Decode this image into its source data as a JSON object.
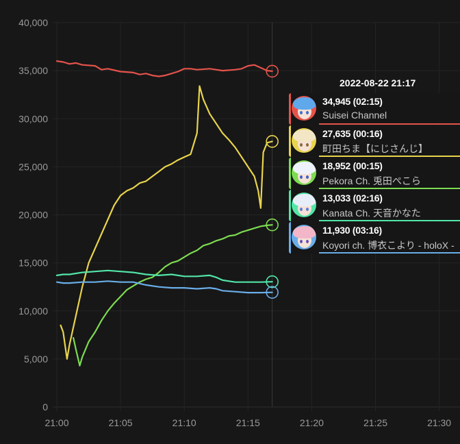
{
  "chart_data": {
    "type": "line",
    "x_unit": "minutes since 21:00",
    "xlim": [
      0,
      30
    ],
    "ylim": [
      0,
      40000
    ],
    "x_ticks": [
      "21:00",
      "21:05",
      "21:10",
      "21:15",
      "21:20",
      "21:25",
      "21:30"
    ],
    "y_ticks": [
      "0",
      "5,000",
      "10,000",
      "15,000",
      "20,000",
      "25,000",
      "30,000",
      "35,000",
      "40,000"
    ],
    "hover_x": 16.9,
    "series": [
      {
        "name": "Suisei Channel",
        "color": "#e5534b",
        "points": [
          [
            0,
            36000
          ],
          [
            0.5,
            35900
          ],
          [
            1,
            35700
          ],
          [
            1.5,
            35800
          ],
          [
            2,
            35600
          ],
          [
            3,
            35500
          ],
          [
            3.5,
            35100
          ],
          [
            4,
            35200
          ],
          [
            5,
            34900
          ],
          [
            6,
            34800
          ],
          [
            6.5,
            34600
          ],
          [
            7,
            34700
          ],
          [
            7.5,
            34500
          ],
          [
            8,
            34400
          ],
          [
            8.5,
            34500
          ],
          [
            9,
            34700
          ],
          [
            9.5,
            34900
          ],
          [
            10,
            35200
          ],
          [
            10.5,
            35200
          ],
          [
            11,
            35100
          ],
          [
            12,
            35200
          ],
          [
            12.5,
            35100
          ],
          [
            13,
            35000
          ],
          [
            14,
            35100
          ],
          [
            14.5,
            35200
          ],
          [
            15,
            35500
          ],
          [
            15.5,
            35600
          ],
          [
            16,
            35300
          ],
          [
            16.5,
            35000
          ],
          [
            16.9,
            34945
          ]
        ]
      },
      {
        "name": "町田ちま【にじさんじ】",
        "color": "#e8d44d",
        "points": [
          [
            0.3,
            8500
          ],
          [
            0.5,
            7800
          ],
          [
            0.8,
            5000
          ],
          [
            1,
            6500
          ],
          [
            1.5,
            9500
          ],
          [
            2,
            12500
          ],
          [
            2.5,
            15000
          ],
          [
            3,
            16500
          ],
          [
            3.5,
            18000
          ],
          [
            4,
            19500
          ],
          [
            4.5,
            21000
          ],
          [
            5,
            22000
          ],
          [
            5.5,
            22500
          ],
          [
            6,
            22800
          ],
          [
            6.5,
            23300
          ],
          [
            7,
            23500
          ],
          [
            7.5,
            24000
          ],
          [
            8,
            24500
          ],
          [
            8.5,
            25000
          ],
          [
            9,
            25300
          ],
          [
            9.5,
            25700
          ],
          [
            10,
            26000
          ],
          [
            10.5,
            26300
          ],
          [
            11,
            28500
          ],
          [
            11.2,
            33400
          ],
          [
            11.5,
            32000
          ],
          [
            12,
            30500
          ],
          [
            12.5,
            29500
          ],
          [
            13,
            28500
          ],
          [
            13.5,
            27800
          ],
          [
            14,
            27000
          ],
          [
            14.5,
            26000
          ],
          [
            15,
            25000
          ],
          [
            15.5,
            24000
          ],
          [
            15.8,
            22500
          ],
          [
            16,
            20700
          ],
          [
            16.2,
            26500
          ],
          [
            16.5,
            27500
          ],
          [
            16.9,
            27635
          ]
        ]
      },
      {
        "name": "Pekora Ch. 兎田ぺこら",
        "color": "#7ddc52",
        "points": [
          [
            1.3,
            7200
          ],
          [
            1.5,
            6000
          ],
          [
            1.8,
            4300
          ],
          [
            2,
            5200
          ],
          [
            2.5,
            6800
          ],
          [
            3,
            7800
          ],
          [
            3.5,
            9000
          ],
          [
            4,
            10000
          ],
          [
            4.5,
            10800
          ],
          [
            5,
            11500
          ],
          [
            5.5,
            12200
          ],
          [
            6,
            12600
          ],
          [
            6.5,
            13000
          ],
          [
            7,
            13300
          ],
          [
            7.5,
            13500
          ],
          [
            8,
            14000
          ],
          [
            8.5,
            14600
          ],
          [
            9,
            15000
          ],
          [
            9.5,
            15200
          ],
          [
            10,
            15600
          ],
          [
            10.5,
            16000
          ],
          [
            11,
            16300
          ],
          [
            11.5,
            16800
          ],
          [
            12,
            17000
          ],
          [
            12.5,
            17300
          ],
          [
            13,
            17500
          ],
          [
            13.5,
            17800
          ],
          [
            14,
            17900
          ],
          [
            14.5,
            18200
          ],
          [
            15,
            18400
          ],
          [
            15.5,
            18600
          ],
          [
            16,
            18800
          ],
          [
            16.5,
            18900
          ],
          [
            16.9,
            18952
          ]
        ]
      },
      {
        "name": "Kanata Ch. 天音かなた",
        "color": "#52e6a8",
        "points": [
          [
            0,
            13700
          ],
          [
            0.5,
            13800
          ],
          [
            1,
            13800
          ],
          [
            2,
            14000
          ],
          [
            3,
            14100
          ],
          [
            4,
            14200
          ],
          [
            5,
            14100
          ],
          [
            6,
            14000
          ],
          [
            7,
            13800
          ],
          [
            8,
            13700
          ],
          [
            9,
            13800
          ],
          [
            10,
            13600
          ],
          [
            11,
            13600
          ],
          [
            12,
            13700
          ],
          [
            12.5,
            13500
          ],
          [
            13,
            13200
          ],
          [
            13.5,
            13100
          ],
          [
            14,
            13000
          ],
          [
            15,
            13000
          ],
          [
            16,
            13000
          ],
          [
            16.9,
            13033
          ]
        ]
      },
      {
        "name": "Koyori ch. 博衣こより - holoX -",
        "color": "#6aaee8",
        "points": [
          [
            0,
            13000
          ],
          [
            0.5,
            12900
          ],
          [
            1,
            12900
          ],
          [
            2,
            13000
          ],
          [
            3,
            13000
          ],
          [
            4,
            13100
          ],
          [
            5,
            13000
          ],
          [
            6,
            13000
          ],
          [
            7,
            12700
          ],
          [
            8,
            12500
          ],
          [
            9,
            12400
          ],
          [
            10,
            12400
          ],
          [
            11,
            12300
          ],
          [
            12,
            12400
          ],
          [
            12.5,
            12300
          ],
          [
            13,
            12100
          ],
          [
            14,
            12000
          ],
          [
            15,
            11900
          ],
          [
            16,
            11900
          ],
          [
            16.9,
            11930
          ]
        ]
      }
    ]
  },
  "tooltip": {
    "title": "2022-08-22 21:17",
    "rows": [
      {
        "value": "34,945",
        "time": "(02:15)",
        "name": "Suisei Channel",
        "color": "#e5534b",
        "hair": "#5fa8ec",
        "eye": "#3f6fd1"
      },
      {
        "value": "27,635",
        "time": "(00:16)",
        "name": "町田ちま【にじさんじ】",
        "color": "#e8d44d",
        "hair": "#f2e6c4",
        "eye": "#8a6a3a"
      },
      {
        "value": "18,952",
        "time": "(00:15)",
        "name": "Pekora Ch. 兎田ぺこら",
        "color": "#7ddc52",
        "hair": "#eef2fb",
        "eye": "#3f5fc7"
      },
      {
        "value": "13,033",
        "time": "(02:16)",
        "name": "Kanata Ch. 天音かなた",
        "color": "#52e6a8",
        "hair": "#e8eef8",
        "eye": "#5b7fd6"
      },
      {
        "value": "11,930",
        "time": "(03:16)",
        "name": "Koyori ch. 博衣こより - holoX -",
        "color": "#6aaee8",
        "hair": "#f2b6c8",
        "eye": "#6a4fb8"
      }
    ]
  }
}
